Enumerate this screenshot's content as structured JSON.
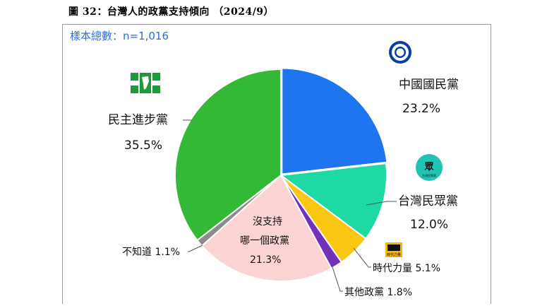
{
  "header": {
    "figure_title": "圖 32：台灣人的政黨支持傾向 （2024/9）",
    "sample_size": "樣本總數：n=1,016"
  },
  "chart_data": {
    "type": "pie",
    "slices": [
      {
        "name": "中國國民黨",
        "value": 23.2,
        "label": "23.2%",
        "color": "#1f74f0"
      },
      {
        "name": "台灣民眾黨",
        "value": 12.0,
        "label": "12.0%",
        "color": "#1ed9a4"
      },
      {
        "name": "時代力量",
        "value": 5.1,
        "label": "5.1%",
        "color": "#f9c612"
      },
      {
        "name": "其他政黨",
        "value": 1.8,
        "label": "1.8%",
        "color": "#7132b8"
      },
      {
        "name": "沒支持哪一個政黨",
        "value": 21.3,
        "label": "21.3%",
        "color": "#fbd3d3"
      },
      {
        "name": "不知道",
        "value": 1.1,
        "label": "1.1%",
        "color": "#8c8c8c"
      },
      {
        "name": "民主進步黨",
        "value": 35.5,
        "label": "35.5%",
        "color": "#33b935"
      }
    ],
    "start_angle_deg": 0,
    "direction": "clockwise"
  },
  "labels": {
    "kmt_name": "中國國民黨",
    "kmt_pct": "23.2%",
    "tpp_name": "台灣民眾黨",
    "tpp_pct": "12.0%",
    "npp": "時代力量 5.1%",
    "other": "其他政黨 1.8%",
    "none_line1": "沒支持",
    "none_line2": "哪一個政黨",
    "none_pct": "21.3%",
    "dontknow": "不知道 1.1%",
    "dpp_name": "民主進步黨",
    "dpp_pct": "35.5%"
  },
  "logos": {
    "kmt": "kmt-sun-logo",
    "tpp": "tpp-logo",
    "tpp_text": "台灣民眾黨",
    "npp": "npp-logo",
    "npp_text": "時代力量",
    "dpp": "dpp-taiwan-cross-logo"
  }
}
